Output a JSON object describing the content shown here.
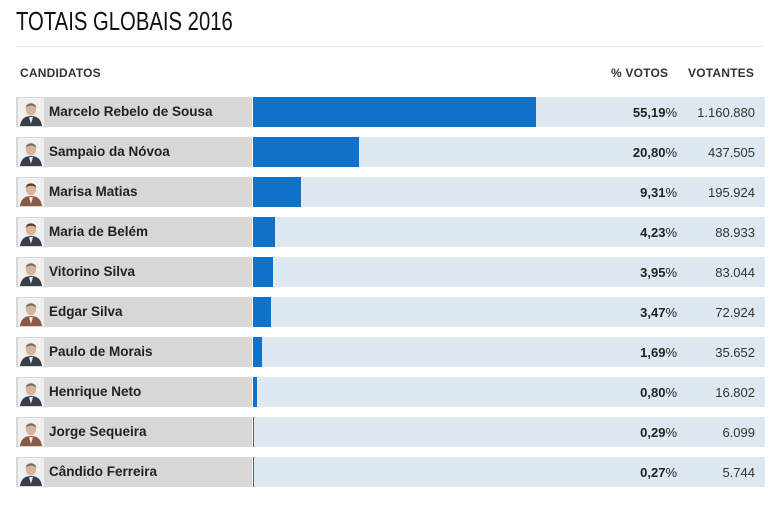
{
  "title": "TOTAIS GLOBAIS 2016",
  "headers": {
    "candidates": "CANDIDATOS",
    "percent": "% VOTOS",
    "voters": "VOTANTES"
  },
  "colors": {
    "bar": "#1071c9",
    "track": "#dde8f0",
    "name_bg": "#d7d7d7"
  },
  "chart_data": {
    "type": "bar",
    "title": "TOTAIS GLOBAIS 2016",
    "xlabel": "% VOTOS",
    "ylabel": "CANDIDATOS",
    "xlim": [
      0,
      100
    ],
    "categories": [
      "Marcelo Rebelo de Sousa",
      "Sampaio da Nóvoa",
      "Marisa Matias",
      "Maria de Belém",
      "Vitorino Silva",
      "Edgar Silva",
      "Paulo de Morais",
      "Henrique Neto",
      "Jorge Sequeira",
      "Cândido Ferreira"
    ],
    "values": [
      55.19,
      20.8,
      9.31,
      4.23,
      3.95,
      3.47,
      1.69,
      0.8,
      0.29,
      0.27
    ],
    "percent_labels": [
      "55,19",
      "20,80",
      "9,31",
      "4,23",
      "3,95",
      "3,47",
      "1,69",
      "0,80",
      "0,29",
      "0,27"
    ],
    "voters": [
      "1.160.880",
      "437.505",
      "195.924",
      "88.933",
      "83.044",
      "72.924",
      "35.652",
      "16.802",
      "6.099",
      "5.744"
    ]
  }
}
